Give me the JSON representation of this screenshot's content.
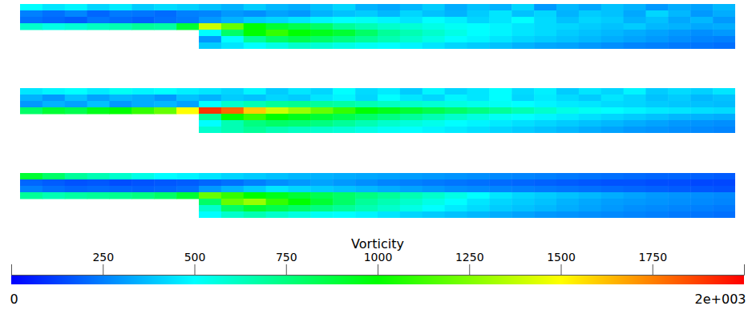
{
  "chart_data": {
    "type": "heatmap",
    "panels": [
      {
        "cells": [
          [
            500,
            450,
            480,
            420,
            460,
            400,
            430,
            410,
            380,
            350,
            400,
            360,
            340,
            380,
            420,
            350,
            330,
            360,
            400,
            340,
            380,
            350,
            420,
            300,
            360,
            330,
            380,
            350,
            300,
            340,
            320,
            360
          ],
          [
            250,
            220,
            260,
            200,
            240,
            230,
            210,
            250,
            260,
            300,
            280,
            320,
            300,
            350,
            380,
            400,
            360,
            420,
            380,
            350,
            400,
            450,
            380,
            420,
            350,
            400,
            380,
            330,
            420,
            360,
            300,
            340
          ],
          [
            220,
            200,
            180,
            230,
            210,
            190,
            220,
            240,
            300,
            350,
            400,
            420,
            450,
            480,
            500,
            520,
            480,
            450,
            500,
            470,
            420,
            450,
            500,
            430,
            380,
            420,
            400,
            350,
            380,
            330,
            360,
            300
          ],
          [
            600,
            550,
            580,
            620,
            650,
            700,
            680,
            900,
            1400,
            1200,
            1000,
            900,
            850,
            800,
            700,
            650,
            600,
            580,
            550,
            520,
            500,
            480,
            450,
            430,
            420,
            400,
            380,
            400,
            360,
            350,
            330,
            340
          ],
          [
            null,
            null,
            null,
            null,
            null,
            null,
            null,
            null,
            500,
            800,
            1000,
            1100,
            1000,
            950,
            900,
            800,
            700,
            650,
            600,
            550,
            500,
            480,
            450,
            430,
            400,
            380,
            360,
            340,
            320,
            300,
            280,
            300
          ],
          [
            null,
            null,
            null,
            null,
            null,
            null,
            null,
            null,
            300,
            500,
            700,
            800,
            850,
            800,
            750,
            700,
            650,
            600,
            550,
            500,
            480,
            450,
            420,
            400,
            380,
            360,
            340,
            320,
            300,
            280,
            260,
            250
          ],
          [
            null,
            null,
            null,
            null,
            null,
            null,
            null,
            null,
            400,
            450,
            500,
            550,
            600,
            580,
            550,
            520,
            500,
            480,
            450,
            420,
            400,
            380,
            350,
            330,
            320,
            300,
            280,
            260,
            250,
            240,
            230,
            220
          ]
        ]
      },
      {
        "cells": [
          [
            450,
            480,
            500,
            460,
            520,
            480,
            500,
            470,
            450,
            420,
            480,
            400,
            450,
            420,
            500,
            430,
            460,
            400,
            480,
            420,
            450,
            500,
            430,
            470,
            400,
            450,
            420,
            480,
            400,
            430,
            410,
            450
          ],
          [
            350,
            300,
            380,
            320,
            360,
            340,
            300,
            380,
            350,
            400,
            380,
            420,
            400,
            450,
            480,
            420,
            500,
            450,
            420,
            480,
            450,
            500,
            420,
            460,
            430,
            400,
            450,
            420,
            380,
            400,
            360,
            380
          ],
          [
            300,
            350,
            320,
            380,
            300,
            340,
            360,
            320,
            500,
            600,
            650,
            700,
            720,
            700,
            680,
            650,
            620,
            600,
            580,
            560,
            540,
            520,
            500,
            480,
            460,
            450,
            430,
            420,
            400,
            390,
            380,
            370
          ],
          [
            800,
            900,
            850,
            950,
            1000,
            1100,
            1200,
            1500,
            1900,
            1800,
            1600,
            1400,
            1300,
            1200,
            1100,
            1000,
            950,
            900,
            850,
            800,
            750,
            700,
            650,
            600,
            550,
            520,
            500,
            480,
            460,
            450,
            440,
            430
          ],
          [
            null,
            null,
            null,
            null,
            null,
            null,
            null,
            null,
            700,
            1000,
            1100,
            1000,
            950,
            900,
            850,
            800,
            750,
            700,
            650,
            600,
            560,
            520,
            500,
            480,
            460,
            440,
            420,
            400,
            380,
            360,
            350,
            340
          ],
          [
            null,
            null,
            null,
            null,
            null,
            null,
            null,
            null,
            500,
            650,
            750,
            800,
            780,
            750,
            700,
            650,
            600,
            570,
            540,
            500,
            480,
            460,
            440,
            420,
            400,
            380,
            360,
            340,
            320,
            300,
            290,
            280
          ],
          [
            null,
            null,
            null,
            null,
            null,
            null,
            null,
            null,
            600,
            650,
            700,
            650,
            620,
            600,
            580,
            550,
            520,
            500,
            480,
            460,
            440,
            420,
            400,
            380,
            360,
            340,
            320,
            300,
            290,
            280,
            270,
            260
          ]
        ]
      },
      {
        "cells": [
          [
            900,
            800,
            700,
            650,
            600,
            550,
            500,
            480,
            450,
            420,
            400,
            380,
            360,
            350,
            340,
            330,
            320,
            310,
            300,
            290,
            280,
            270,
            260,
            250,
            240,
            230,
            220,
            210,
            200,
            200,
            190,
            180
          ],
          [
            200,
            180,
            160,
            170,
            150,
            160,
            170,
            180,
            200,
            220,
            250,
            280,
            300,
            320,
            300,
            280,
            260,
            250,
            240,
            230,
            220,
            210,
            200,
            190,
            180,
            170,
            160,
            160,
            150,
            150,
            140,
            140
          ],
          [
            250,
            220,
            200,
            210,
            200,
            190,
            200,
            220,
            300,
            350,
            400,
            450,
            420,
            400,
            380,
            360,
            340,
            320,
            300,
            280,
            270,
            260,
            250,
            240,
            230,
            220,
            210,
            200,
            190,
            180,
            170,
            160
          ],
          [
            700,
            650,
            680,
            700,
            720,
            750,
            800,
            900,
            1200,
            1100,
            1000,
            950,
            900,
            850,
            800,
            750,
            700,
            650,
            600,
            550,
            500,
            450,
            420,
            400,
            380,
            360,
            340,
            320,
            300,
            290,
            280,
            270
          ],
          [
            null,
            null,
            null,
            null,
            null,
            null,
            null,
            null,
            800,
            1200,
            1300,
            1100,
            1000,
            900,
            800,
            700,
            650,
            600,
            550,
            500,
            450,
            420,
            400,
            380,
            350,
            330,
            310,
            300,
            290,
            280,
            270,
            260
          ],
          [
            null,
            null,
            null,
            null,
            null,
            null,
            null,
            null,
            600,
            800,
            900,
            850,
            800,
            750,
            700,
            650,
            600,
            550,
            500,
            460,
            430,
            400,
            380,
            360,
            340,
            320,
            300,
            280,
            270,
            260,
            250,
            240
          ],
          [
            null,
            null,
            null,
            null,
            null,
            null,
            null,
            null,
            500,
            600,
            650,
            600,
            560,
            520,
            500,
            480,
            450,
            420,
            400,
            380,
            360,
            340,
            320,
            300,
            290,
            280,
            270,
            260,
            250,
            240,
            230,
            220
          ]
        ]
      }
    ],
    "colorbar": {
      "title": "Vorticity",
      "range": [
        0,
        2000
      ],
      "ticks": [
        0,
        250,
        500,
        750,
        1000,
        1250,
        1500,
        1750,
        {
          "value": 2000,
          "label": "2e+003"
        }
      ]
    }
  }
}
